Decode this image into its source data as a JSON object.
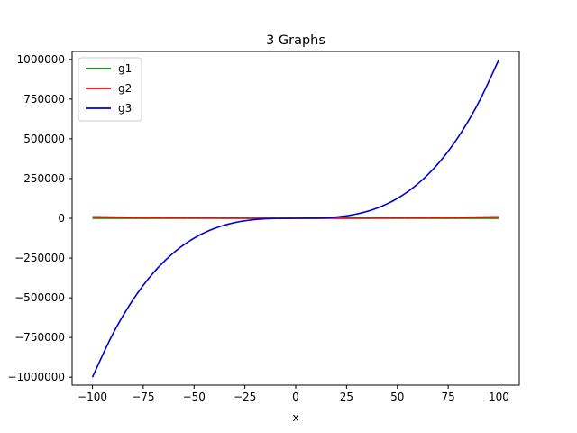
{
  "chart_data": {
    "type": "line",
    "title": "3 Graphs",
    "xlabel": "x",
    "ylabel": "",
    "xlim": [
      -110,
      110
    ],
    "ylim": [
      -1050000,
      1050000
    ],
    "x_ticks": [
      -100,
      -75,
      -50,
      -25,
      0,
      25,
      50,
      75,
      100
    ],
    "x_tick_labels": [
      "−100",
      "−75",
      "−50",
      "−25",
      "0",
      "25",
      "50",
      "75",
      "100"
    ],
    "y_ticks": [
      -1000000,
      -750000,
      -500000,
      -250000,
      0,
      250000,
      500000,
      750000,
      1000000
    ],
    "y_tick_labels": [
      "−1000000",
      "−750000",
      "−500000",
      "−250000",
      "0",
      "250000",
      "500000",
      "750000",
      "1000000"
    ],
    "grid": false,
    "legend_position": "top-left",
    "x": [
      -100,
      -90,
      -80,
      -70,
      -60,
      -50,
      -40,
      -30,
      -20,
      -10,
      0,
      10,
      20,
      30,
      40,
      50,
      60,
      70,
      80,
      90,
      100
    ],
    "series": [
      {
        "name": "g1",
        "color": "#008000",
        "values": [
          100,
          90,
          80,
          70,
          60,
          50,
          40,
          30,
          20,
          10,
          0,
          10,
          20,
          30,
          40,
          50,
          60,
          70,
          80,
          90,
          100
        ]
      },
      {
        "name": "g2",
        "color": "#ff0000",
        "values": [
          10000,
          8100,
          6400,
          4900,
          3600,
          2500,
          1600,
          900,
          400,
          100,
          0,
          100,
          400,
          900,
          1600,
          2500,
          3600,
          4900,
          6400,
          8100,
          10000
        ]
      },
      {
        "name": "g3",
        "color": "#0000cc",
        "values": [
          -1000000,
          -729000,
          -512000,
          -343000,
          -216000,
          -125000,
          -64000,
          -27000,
          -8000,
          -1000,
          0,
          1000,
          8000,
          27000,
          64000,
          125000,
          216000,
          343000,
          512000,
          729000,
          1000000
        ]
      }
    ]
  }
}
